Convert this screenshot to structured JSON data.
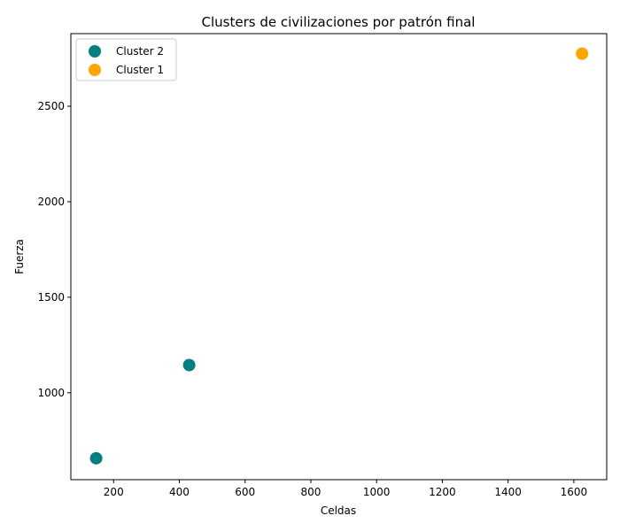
{
  "chart_data": {
    "type": "scatter",
    "title": "Clusters de civilizaciones por patrón final",
    "xlabel": "Celdas",
    "ylabel": "Fuerza",
    "xlim": [
      70,
      1700
    ],
    "ylim": [
      545,
      2880
    ],
    "xticks": [
      200,
      400,
      600,
      800,
      1000,
      1200,
      1400,
      1600
    ],
    "yticks": [
      1000,
      1500,
      2000,
      2500
    ],
    "grid": false,
    "legend_position": "top-left",
    "series": [
      {
        "name": "Cluster 2",
        "color": "#008080",
        "points": [
          {
            "x": 147,
            "y": 657
          },
          {
            "x": 430,
            "y": 1145
          }
        ]
      },
      {
        "name": "Cluster 1",
        "color": "#FFA500",
        "points": [
          {
            "x": 1625,
            "y": 2775
          }
        ]
      }
    ]
  }
}
